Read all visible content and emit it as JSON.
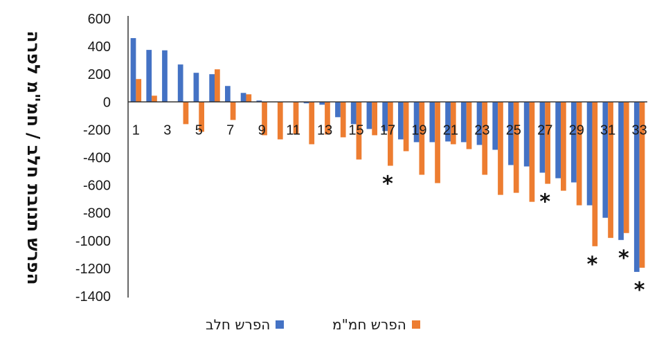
{
  "chart_data": {
    "type": "bar",
    "ylabel": "הפרש תנובת חלב / חמ\"מ לפרה",
    "ylim": [
      -1400,
      600
    ],
    "yticks": [
      600,
      400,
      200,
      0,
      -200,
      -400,
      -600,
      -800,
      -1000,
      -1200,
      -1400
    ],
    "categories": [
      1,
      2,
      3,
      4,
      5,
      6,
      7,
      8,
      9,
      10,
      11,
      12,
      13,
      14,
      15,
      16,
      17,
      18,
      19,
      20,
      21,
      22,
      23,
      24,
      25,
      26,
      27,
      28,
      29,
      30,
      31,
      32,
      33
    ],
    "xtick_labels": [
      "1",
      "3",
      "5",
      "7",
      "9",
      "11",
      "13",
      "15",
      "17",
      "19",
      "21",
      "23",
      "25",
      "27",
      "29",
      "31",
      "33"
    ],
    "series": [
      {
        "name": "הפרש חלב",
        "color": "#4472C4",
        "values": [
          460,
          375,
          372,
          270,
          210,
          200,
          115,
          65,
          10,
          0,
          0,
          -10,
          -20,
          -110,
          -160,
          -195,
          -210,
          -270,
          -290,
          -290,
          -285,
          -290,
          -310,
          -345,
          -455,
          -465,
          -510,
          -550,
          -580,
          -745,
          -835,
          -995,
          -1225
        ]
      },
      {
        "name": "הפרש חמ\"מ",
        "color": "#ED7D31",
        "values": [
          165,
          45,
          0,
          -160,
          -215,
          235,
          -130,
          55,
          -240,
          -270,
          -230,
          -305,
          -235,
          -255,
          -415,
          -240,
          -460,
          -355,
          -525,
          -585,
          -305,
          -340,
          -525,
          -670,
          -655,
          -720,
          -590,
          -640,
          -745,
          -1040,
          -980,
          -945,
          -1195
        ]
      }
    ],
    "annotations": [
      {
        "label": "*",
        "category": 17
      },
      {
        "label": "*",
        "category": 27
      },
      {
        "label": "*",
        "category": 30
      },
      {
        "label": "*",
        "category": 32
      },
      {
        "label": "*",
        "category": 33
      }
    ],
    "legend_position": "bottom"
  }
}
